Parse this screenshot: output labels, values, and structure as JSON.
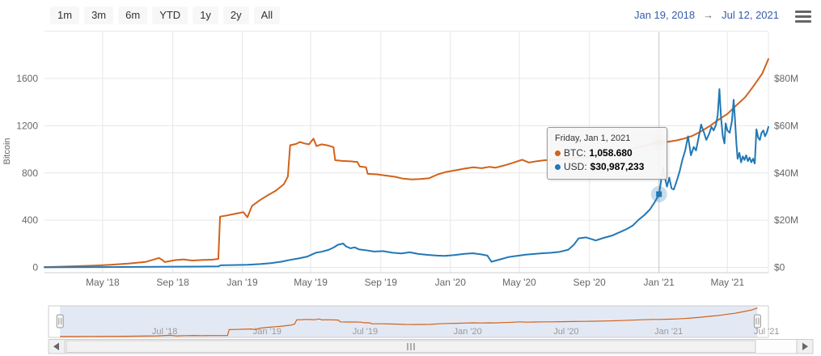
{
  "toolbar": {
    "range_buttons": [
      "1m",
      "3m",
      "6m",
      "YTD",
      "1y",
      "2y",
      "All"
    ],
    "date_from": "Jan 19, 2018",
    "arrow": "→",
    "date_to": "Jul 12, 2021"
  },
  "colors": {
    "btc_series": "#d2621a",
    "usd_series": "#2278b5",
    "date_text": "#335cad",
    "axis_label": "#666666",
    "gridline": "#e7e7e7",
    "axis_line": "#cccccc",
    "navigator_mask": "rgba(102,133,194,0.18)"
  },
  "chart_data": {
    "type": "line",
    "title": "",
    "x_axis": {
      "start": "2018-01-19",
      "end": "2021-07-12",
      "ticks": [
        {
          "label": "May '18",
          "date": "2018-05-01"
        },
        {
          "label": "Sep '18",
          "date": "2018-09-01"
        },
        {
          "label": "Jan '19",
          "date": "2019-01-01"
        },
        {
          "label": "May '19",
          "date": "2019-05-01"
        },
        {
          "label": "Sep '19",
          "date": "2019-09-01"
        },
        {
          "label": "Jan '20",
          "date": "2020-01-01"
        },
        {
          "label": "May '20",
          "date": "2020-05-01"
        },
        {
          "label": "Sep '20",
          "date": "2020-09-01"
        },
        {
          "label": "Jan '21",
          "date": "2021-01-01"
        },
        {
          "label": "May '21",
          "date": "2021-05-01"
        }
      ]
    },
    "y_left": {
      "title": "Bitcoin",
      "ticks": [
        0,
        400,
        800,
        1200,
        1600
      ],
      "grid_max": 2000
    },
    "y_right": {
      "ticks": [
        {
          "label": "$0",
          "value": 0
        },
        {
          "label": "$20M",
          "value": 20
        },
        {
          "label": "$40M",
          "value": 40
        },
        {
          "label": "$60M",
          "value": 60
        },
        {
          "label": "$80M",
          "value": 80
        }
      ],
      "grid_max": 100
    },
    "crosshair_date": "2021-01-01",
    "markers": [
      {
        "series": "BTC",
        "date": "2021-01-01",
        "value": 1058.68,
        "shape": "circle"
      },
      {
        "series": "USD",
        "date": "2021-01-01",
        "value": 30.99,
        "shape": "square"
      }
    ],
    "series": [
      {
        "name": "BTC",
        "axis": "left",
        "color": "#d2621a",
        "points": [
          [
            "2018-01-19",
            3
          ],
          [
            "2018-02-15",
            6
          ],
          [
            "2018-03-15",
            10
          ],
          [
            "2018-04-15",
            15
          ],
          [
            "2018-05-15",
            22
          ],
          [
            "2018-06-15",
            32
          ],
          [
            "2018-07-15",
            46
          ],
          [
            "2018-08-08",
            80
          ],
          [
            "2018-08-14",
            62
          ],
          [
            "2018-08-18",
            45
          ],
          [
            "2018-09-05",
            62
          ],
          [
            "2018-09-20",
            68
          ],
          [
            "2018-10-05",
            58
          ],
          [
            "2018-10-25",
            63
          ],
          [
            "2018-11-10",
            66
          ],
          [
            "2018-11-20",
            72
          ],
          [
            "2018-11-23",
            430
          ],
          [
            "2018-12-05",
            440
          ],
          [
            "2018-12-20",
            455
          ],
          [
            "2019-01-03",
            468
          ],
          [
            "2019-01-10",
            425
          ],
          [
            "2019-01-18",
            520
          ],
          [
            "2019-02-01",
            570
          ],
          [
            "2019-02-15",
            612
          ],
          [
            "2019-03-01",
            650
          ],
          [
            "2019-03-15",
            705
          ],
          [
            "2019-03-22",
            770
          ],
          [
            "2019-03-26",
            1035
          ],
          [
            "2019-04-05",
            1045
          ],
          [
            "2019-04-12",
            1062
          ],
          [
            "2019-04-20",
            1050
          ],
          [
            "2019-04-28",
            1042
          ],
          [
            "2019-05-06",
            1090
          ],
          [
            "2019-05-11",
            1028
          ],
          [
            "2019-05-20",
            1042
          ],
          [
            "2019-06-01",
            1032
          ],
          [
            "2019-06-10",
            1018
          ],
          [
            "2019-06-13",
            908
          ],
          [
            "2019-06-25",
            902
          ],
          [
            "2019-07-10",
            898
          ],
          [
            "2019-07-22",
            892
          ],
          [
            "2019-07-26",
            855
          ],
          [
            "2019-08-06",
            848
          ],
          [
            "2019-08-09",
            792
          ],
          [
            "2019-08-25",
            788
          ],
          [
            "2019-09-10",
            778
          ],
          [
            "2019-09-25",
            768
          ],
          [
            "2019-10-10",
            752
          ],
          [
            "2019-10-25",
            745
          ],
          [
            "2019-11-10",
            748
          ],
          [
            "2019-11-25",
            756
          ],
          [
            "2019-12-10",
            788
          ],
          [
            "2019-12-24",
            808
          ],
          [
            "2020-01-10",
            822
          ],
          [
            "2020-01-25",
            836
          ],
          [
            "2020-02-10",
            848
          ],
          [
            "2020-02-25",
            840
          ],
          [
            "2020-03-10",
            852
          ],
          [
            "2020-03-20",
            844
          ],
          [
            "2020-04-05",
            864
          ],
          [
            "2020-04-20",
            886
          ],
          [
            "2020-05-06",
            912
          ],
          [
            "2020-05-18",
            888
          ],
          [
            "2020-06-01",
            900
          ],
          [
            "2020-06-15",
            908
          ],
          [
            "2020-07-01",
            912
          ],
          [
            "2020-07-20",
            920
          ],
          [
            "2020-08-10",
            930
          ],
          [
            "2020-09-01",
            938
          ],
          [
            "2020-09-20",
            950
          ],
          [
            "2020-10-10",
            965
          ],
          [
            "2020-11-01",
            985
          ],
          [
            "2020-11-20",
            1012
          ],
          [
            "2020-12-10",
            1035
          ],
          [
            "2021-01-01",
            1058.68
          ],
          [
            "2021-01-15",
            1062
          ],
          [
            "2021-02-01",
            1076
          ],
          [
            "2021-02-15",
            1092
          ],
          [
            "2021-03-01",
            1115
          ],
          [
            "2021-03-15",
            1150
          ],
          [
            "2021-04-01",
            1200
          ],
          [
            "2021-04-15",
            1250
          ],
          [
            "2021-05-01",
            1300
          ],
          [
            "2021-05-15",
            1365
          ],
          [
            "2021-06-01",
            1440
          ],
          [
            "2021-06-15",
            1530
          ],
          [
            "2021-07-01",
            1640
          ],
          [
            "2021-07-12",
            1765
          ]
        ]
      },
      {
        "name": "USD",
        "axis": "right",
        "color": "#2278b5",
        "points": [
          [
            "2018-01-19",
            0.05
          ],
          [
            "2018-03-01",
            0.08
          ],
          [
            "2018-05-01",
            0.12
          ],
          [
            "2018-07-01",
            0.2
          ],
          [
            "2018-09-01",
            0.3
          ],
          [
            "2018-10-15",
            0.35
          ],
          [
            "2018-11-20",
            0.4
          ],
          [
            "2018-11-24",
            0.9
          ],
          [
            "2018-12-15",
            1.0
          ],
          [
            "2019-01-10",
            1.1
          ],
          [
            "2019-02-01",
            1.4
          ],
          [
            "2019-02-20",
            1.8
          ],
          [
            "2019-03-10",
            2.4
          ],
          [
            "2019-03-26",
            3.2
          ],
          [
            "2019-04-10",
            3.8
          ],
          [
            "2019-04-25",
            4.6
          ],
          [
            "2019-05-10",
            6.2
          ],
          [
            "2019-05-20",
            6.6
          ],
          [
            "2019-06-01",
            7.4
          ],
          [
            "2019-06-10",
            8.4
          ],
          [
            "2019-06-18",
            9.6
          ],
          [
            "2019-06-27",
            10.1
          ],
          [
            "2019-07-02",
            8.9
          ],
          [
            "2019-07-10",
            8.1
          ],
          [
            "2019-07-17",
            8.5
          ],
          [
            "2019-07-25",
            7.6
          ],
          [
            "2019-08-05",
            7.3
          ],
          [
            "2019-08-20",
            6.7
          ],
          [
            "2019-09-05",
            6.9
          ],
          [
            "2019-09-22",
            6.2
          ],
          [
            "2019-10-07",
            5.9
          ],
          [
            "2019-10-22",
            6.4
          ],
          [
            "2019-11-06",
            5.7
          ],
          [
            "2019-11-22",
            5.3
          ],
          [
            "2019-12-08",
            5.0
          ],
          [
            "2019-12-22",
            4.9
          ],
          [
            "2020-01-08",
            5.2
          ],
          [
            "2020-01-24",
            5.7
          ],
          [
            "2020-02-09",
            6.0
          ],
          [
            "2020-02-24",
            5.5
          ],
          [
            "2020-03-06",
            5.0
          ],
          [
            "2020-03-13",
            2.4
          ],
          [
            "2020-03-27",
            3.3
          ],
          [
            "2020-04-12",
            4.4
          ],
          [
            "2020-04-27",
            4.9
          ],
          [
            "2020-05-12",
            5.4
          ],
          [
            "2020-05-27",
            5.7
          ],
          [
            "2020-06-11",
            6.0
          ],
          [
            "2020-06-26",
            6.2
          ],
          [
            "2020-07-11",
            6.6
          ],
          [
            "2020-07-26",
            7.5
          ],
          [
            "2020-08-05",
            9.7
          ],
          [
            "2020-08-13",
            12.3
          ],
          [
            "2020-08-26",
            12.7
          ],
          [
            "2020-09-06",
            11.9
          ],
          [
            "2020-09-12",
            11.4
          ],
          [
            "2020-09-26",
            12.5
          ],
          [
            "2020-10-11",
            13.5
          ],
          [
            "2020-10-26",
            15.1
          ],
          [
            "2020-11-06",
            16.3
          ],
          [
            "2020-11-16",
            17.7
          ],
          [
            "2020-11-26",
            20.1
          ],
          [
            "2020-12-06",
            22.1
          ],
          [
            "2020-12-16",
            24.5
          ],
          [
            "2020-12-23",
            27.1
          ],
          [
            "2020-12-29",
            29.5
          ],
          [
            "2021-01-01",
            30.99
          ],
          [
            "2021-01-04",
            35.5
          ],
          [
            "2021-01-08",
            42.3
          ],
          [
            "2021-01-12",
            37.5
          ],
          [
            "2021-01-15",
            34.2
          ],
          [
            "2021-01-19",
            38.0
          ],
          [
            "2021-01-23",
            33.5
          ],
          [
            "2021-01-27",
            33.0
          ],
          [
            "2021-02-01",
            36.5
          ],
          [
            "2021-02-06",
            40.5
          ],
          [
            "2021-02-11",
            45.5
          ],
          [
            "2021-02-16",
            49.5
          ],
          [
            "2021-02-21",
            55.5
          ],
          [
            "2021-02-26",
            47.5
          ],
          [
            "2021-03-03",
            51.0
          ],
          [
            "2021-03-07",
            49.5
          ],
          [
            "2021-03-12",
            55.5
          ],
          [
            "2021-03-16",
            60.5
          ],
          [
            "2021-03-21",
            57.0
          ],
          [
            "2021-03-25",
            54.0
          ],
          [
            "2021-03-30",
            56.5
          ],
          [
            "2021-04-03",
            59.5
          ],
          [
            "2021-04-07",
            58.0
          ],
          [
            "2021-04-11",
            60.5
          ],
          [
            "2021-04-14",
            64.5
          ],
          [
            "2021-04-17",
            75.5
          ],
          [
            "2021-04-20",
            63.0
          ],
          [
            "2021-04-23",
            55.5
          ],
          [
            "2021-04-26",
            52.5
          ],
          [
            "2021-04-28",
            61.0
          ],
          [
            "2021-05-01",
            58.0
          ],
          [
            "2021-05-05",
            57.0
          ],
          [
            "2021-05-09",
            62.0
          ],
          [
            "2021-05-12",
            71.0
          ],
          [
            "2021-05-14",
            64.0
          ],
          [
            "2021-05-17",
            52.0
          ],
          [
            "2021-05-19",
            46.0
          ],
          [
            "2021-05-22",
            48.5
          ],
          [
            "2021-05-25",
            44.5
          ],
          [
            "2021-05-28",
            47.0
          ],
          [
            "2021-05-31",
            45.5
          ],
          [
            "2021-06-03",
            47.5
          ],
          [
            "2021-06-06",
            45.0
          ],
          [
            "2021-06-09",
            46.5
          ],
          [
            "2021-06-12",
            44.5
          ],
          [
            "2021-06-15",
            46.0
          ],
          [
            "2021-06-18",
            44.0
          ],
          [
            "2021-06-21",
            58.5
          ],
          [
            "2021-06-24",
            55.0
          ],
          [
            "2021-06-27",
            54.0
          ],
          [
            "2021-06-30",
            57.0
          ],
          [
            "2021-07-03",
            58.0
          ],
          [
            "2021-07-06",
            55.5
          ],
          [
            "2021-07-09",
            57.0
          ],
          [
            "2021-07-12",
            59.5
          ]
        ]
      }
    ]
  },
  "tooltip": {
    "header": "Friday, Jan 1, 2021",
    "rows": [
      {
        "label": "BTC:",
        "value": "1,058.680",
        "color": "#d2621a"
      },
      {
        "label": "USD:",
        "value": "$30,987,233",
        "color": "#2278b5"
      }
    ]
  },
  "navigator": {
    "axis_start": "2018-01-01",
    "axis_end": "2021-08-01",
    "selected_from": "2018-01-19",
    "selected_to": "2021-07-12",
    "ticks": [
      {
        "label": "Jul '18",
        "date": "2018-07-01"
      },
      {
        "label": "Jan '19",
        "date": "2019-01-01"
      },
      {
        "label": "Jul '19",
        "date": "2019-07-01"
      },
      {
        "label": "Jan '20",
        "date": "2020-01-01"
      },
      {
        "label": "Jul '20",
        "date": "2020-07-01"
      },
      {
        "label": "Jan '21",
        "date": "2021-01-01"
      },
      {
        "label": "Jul '21",
        "date": "2021-07-01"
      }
    ]
  }
}
